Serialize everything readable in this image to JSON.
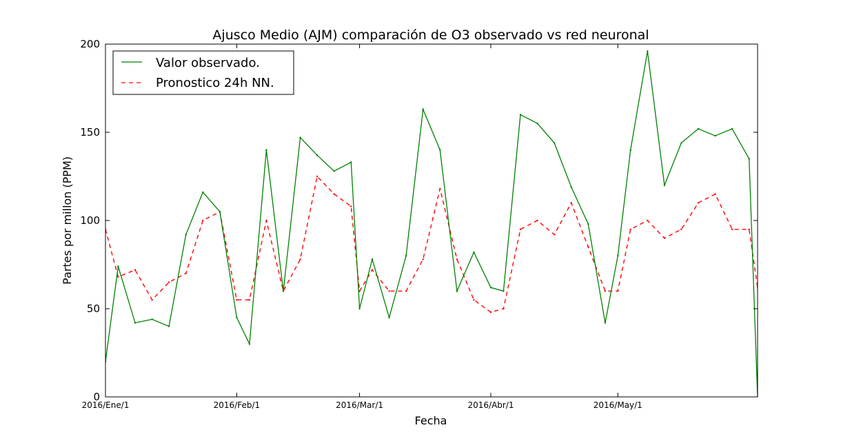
{
  "chart_data": {
    "type": "line",
    "title": "Ajusco Medio (AJM) comparación de O3 observado vs red neuronal",
    "xlabel": "Fecha",
    "ylabel": "Partes por millon (PPM)",
    "ylim": [
      0,
      200
    ],
    "yticks": [
      0,
      50,
      100,
      150,
      200
    ],
    "xlim": [
      "2016-01-01",
      "2016-06-03"
    ],
    "xticks": [
      {
        "date": "2016-01-01",
        "label": "2016/Ene/1"
      },
      {
        "date": "2016-02-01",
        "label": "2016/Feb/1"
      },
      {
        "date": "2016-03-01",
        "label": "2016/Mar/1"
      },
      {
        "date": "2016-04-01",
        "label": "2016/Abr/1"
      },
      {
        "date": "2016-05-01",
        "label": "2016/May/1"
      }
    ],
    "grid": false,
    "legend": "top-left",
    "series": [
      {
        "name": "Valor observado.",
        "color": "#008000",
        "style": "solid",
        "x": [
          "2016-01-01",
          "2016-01-04",
          "2016-01-08",
          "2016-01-12",
          "2016-01-16",
          "2016-01-20",
          "2016-01-24",
          "2016-01-28",
          "2016-02-01",
          "2016-02-04",
          "2016-02-08",
          "2016-02-12",
          "2016-02-16",
          "2016-02-20",
          "2016-02-24",
          "2016-02-28",
          "2016-03-01",
          "2016-03-04",
          "2016-03-08",
          "2016-03-12",
          "2016-03-16",
          "2016-03-20",
          "2016-03-24",
          "2016-03-28",
          "2016-04-01",
          "2016-04-04",
          "2016-04-08",
          "2016-04-12",
          "2016-04-16",
          "2016-04-20",
          "2016-04-24",
          "2016-04-28",
          "2016-05-01",
          "2016-05-04",
          "2016-05-08",
          "2016-05-12",
          "2016-05-16",
          "2016-05-20",
          "2016-05-24",
          "2016-05-28",
          "2016-06-01",
          "2016-06-03"
        ],
        "y": [
          20,
          74,
          42,
          44,
          40,
          92,
          116,
          105,
          45,
          30,
          140,
          60,
          147,
          137,
          128,
          133,
          50,
          78,
          45,
          80,
          163,
          140,
          60,
          82,
          62,
          60,
          160,
          155,
          144,
          119,
          98,
          42,
          80,
          140,
          196,
          120,
          144,
          152,
          148,
          152,
          135,
          0
        ]
      },
      {
        "name": "Pronostico 24h NN.",
        "color": "#ff0000",
        "style": "dashed",
        "x": [
          "2016-01-01",
          "2016-01-04",
          "2016-01-08",
          "2016-01-12",
          "2016-01-16",
          "2016-01-20",
          "2016-01-24",
          "2016-01-28",
          "2016-02-01",
          "2016-02-04",
          "2016-02-08",
          "2016-02-12",
          "2016-02-16",
          "2016-02-20",
          "2016-02-24",
          "2016-02-28",
          "2016-03-01",
          "2016-03-04",
          "2016-03-08",
          "2016-03-12",
          "2016-03-16",
          "2016-03-20",
          "2016-03-24",
          "2016-03-28",
          "2016-04-01",
          "2016-04-04",
          "2016-04-08",
          "2016-04-12",
          "2016-04-16",
          "2016-04-20",
          "2016-04-24",
          "2016-04-28",
          "2016-05-01",
          "2016-05-04",
          "2016-05-08",
          "2016-05-12",
          "2016-05-16",
          "2016-05-20",
          "2016-05-24",
          "2016-05-28",
          "2016-06-01",
          "2016-06-03"
        ],
        "y": [
          95,
          68,
          72,
          55,
          65,
          70,
          100,
          105,
          55,
          55,
          100,
          60,
          78,
          125,
          115,
          108,
          60,
          72,
          60,
          60,
          78,
          118,
          78,
          55,
          48,
          50,
          95,
          100,
          92,
          110,
          85,
          60,
          60,
          95,
          100,
          90,
          95,
          110,
          115,
          95,
          95,
          62
        ]
      }
    ]
  }
}
